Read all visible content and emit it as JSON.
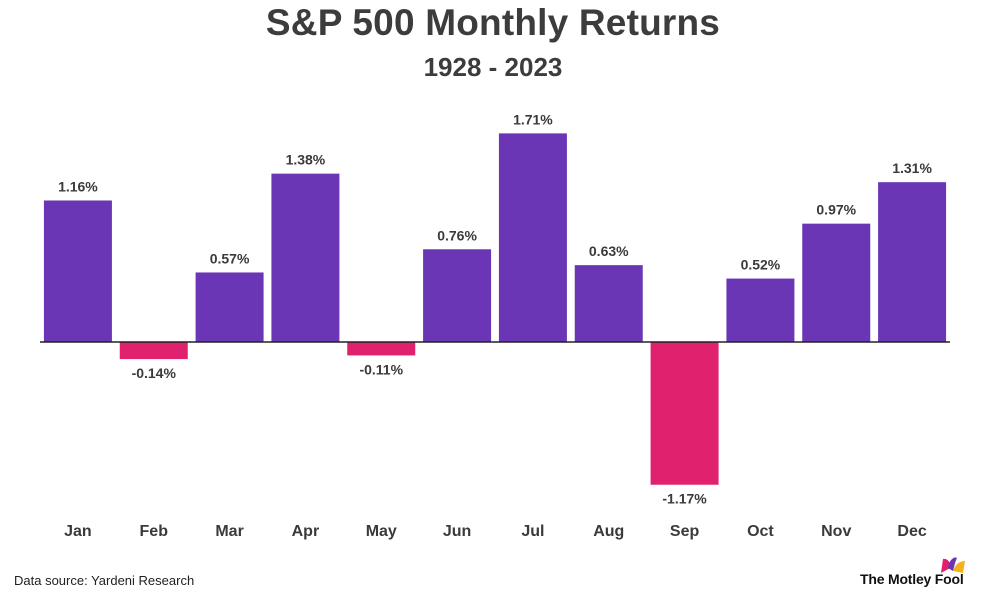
{
  "header": {
    "title": "S&P 500 Monthly Returns",
    "subtitle": "1928 - 2023"
  },
  "footer": {
    "source": "Data source: Yardeni Research",
    "brand": "The Motley Fool"
  },
  "colors": {
    "positive": "#6b36b5",
    "negative": "#e0226e",
    "axis": "#222222",
    "logo": [
      "#e0226e",
      "#6b36b5",
      "#f2b21b"
    ]
  },
  "chart_data": {
    "type": "bar",
    "title": "S&P 500 Monthly Returns",
    "subtitle": "1928 - 2023",
    "categories": [
      "Jan",
      "Feb",
      "Mar",
      "Apr",
      "May",
      "Jun",
      "Jul",
      "Aug",
      "Sep",
      "Oct",
      "Nov",
      "Dec"
    ],
    "values": [
      1.16,
      -0.14,
      0.57,
      1.38,
      -0.11,
      0.76,
      1.71,
      0.63,
      -1.17,
      0.52,
      0.97,
      1.31
    ],
    "labels": [
      "1.16%",
      "-0.14%",
      "0.57%",
      "1.38%",
      "-0.11%",
      "0.76%",
      "1.71%",
      "0.63%",
      "-1.17%",
      "0.52%",
      "0.97%",
      "1.31%"
    ],
    "unit": "%",
    "xlabel": "",
    "ylabel": "",
    "grid": false,
    "legend": "none"
  }
}
